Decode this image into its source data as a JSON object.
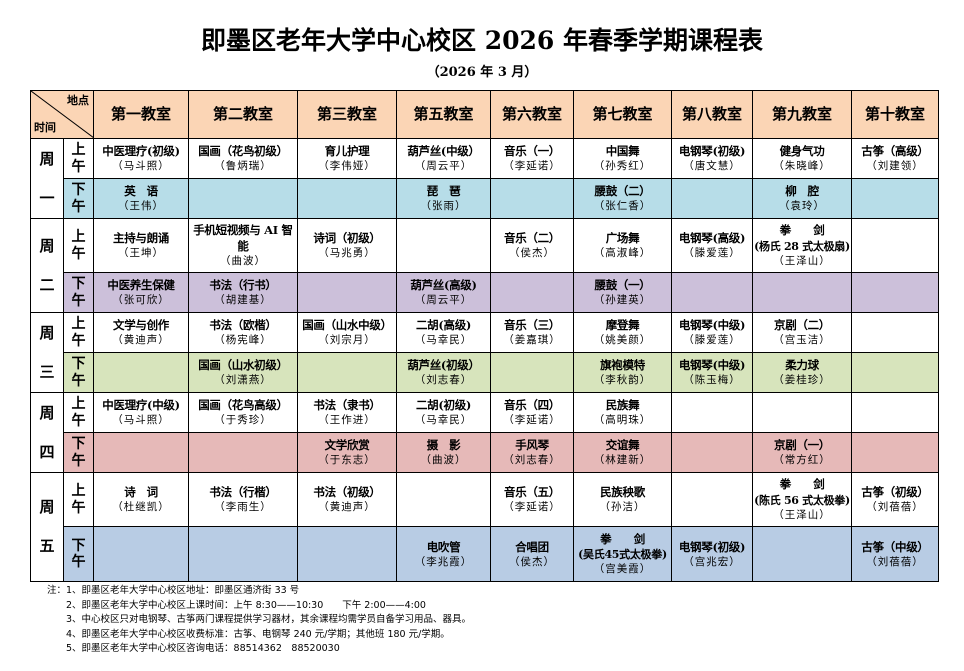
{
  "title": "即墨区老年大学中心校区 2026 年春季学期课程表",
  "subtitle": "（2026 年 3 月）",
  "corner": {
    "top": "地点",
    "bottom": "时间"
  },
  "columns": [
    "第一教室",
    "第二教室",
    "第三教室",
    "第五教室",
    "第六教室",
    "第七教室",
    "第八教室",
    "第九教室",
    "第十教室"
  ],
  "colors": {
    "header": "#fbd5b5",
    "mon_pm": "#b7dde8",
    "tue_pm": "#ccc0da",
    "wed_pm": "#d7e4bc",
    "thu_pm": "#e6b9b8",
    "fri_pm": "#b8cce4"
  },
  "days": [
    {
      "day": [
        "周",
        "一"
      ],
      "am_label": [
        "上",
        "午"
      ],
      "pm_label": [
        "下",
        "午"
      ],
      "pm_color": "#b7dde8",
      "am": [
        {
          "c": "中医理疗(初级)",
          "t": "（马斗照）"
        },
        {
          "c": "国画（花鸟初级）",
          "t": "（鲁炳瑞）"
        },
        {
          "c": "育儿护理",
          "t": "（李伟娅）"
        },
        {
          "c": "葫芦丝(中级）",
          "t": "（周云平）"
        },
        {
          "c": "音乐（一）",
          "t": "（李延诺）"
        },
        {
          "c": "中国舞",
          "t": "（孙秀红）"
        },
        {
          "c": "电钢琴(初级)",
          "t": "（唐文慧）"
        },
        {
          "c": "健身气功",
          "t": "（朱晓峰）"
        },
        {
          "c": "古筝（高级）",
          "t": "（刘建领）"
        }
      ],
      "pm": [
        {
          "c": "英　语",
          "t": "（王伟）"
        },
        null,
        null,
        {
          "c": "琵　琶",
          "t": "（张雨）"
        },
        null,
        {
          "c": "腰鼓（二）",
          "t": "（张仁香）"
        },
        null,
        {
          "c": "柳　腔",
          "t": "（袁玲）"
        },
        null
      ]
    },
    {
      "day": [
        "周",
        "二"
      ],
      "am_label": [
        "上",
        "午"
      ],
      "pm_label": [
        "下",
        "午"
      ],
      "pm_color": "#ccc0da",
      "am": [
        {
          "c": "主持与朗诵",
          "t": "（王坤）"
        },
        {
          "c": "手机短视频与 AI 智能",
          "t": "（曲波）"
        },
        {
          "c": "诗词（初级）",
          "t": "（马兆勇）"
        },
        null,
        {
          "c": "音乐（二）",
          "t": "（侯杰）"
        },
        {
          "c": "广场舞",
          "t": "（高淑峰）"
        },
        {
          "c": "电钢琴(高级)",
          "t": "（滕爱莲）"
        },
        {
          "c": "拳　　剑",
          "s": "(杨氏 28 式太极扇)",
          "t": "（王泽山）"
        },
        null
      ],
      "pm": [
        {
          "c": "中医养生保健",
          "t": "（张可欣）"
        },
        {
          "c": "书法（行书）",
          "t": "（胡建基）"
        },
        null,
        {
          "c": "葫芦丝(高级)",
          "t": "（周云平）"
        },
        null,
        {
          "c": "腰鼓（一）",
          "t": "（孙建英）"
        },
        null,
        null,
        null
      ]
    },
    {
      "day": [
        "周",
        "三"
      ],
      "am_label": [
        "上",
        "午"
      ],
      "pm_label": [
        "下",
        "午"
      ],
      "pm_color": "#d7e4bc",
      "am": [
        {
          "c": "文学与创作",
          "t": "（黄迪声）"
        },
        {
          "c": "书法（欧楷）",
          "t": "（杨宪峰）"
        },
        {
          "c": "国画（山水中级）",
          "t": "（刘宗月）"
        },
        {
          "c": "二胡(高级)",
          "t": "（马幸民）"
        },
        {
          "c": "音乐（三）",
          "t": "（姜嘉琪）"
        },
        {
          "c": "摩登舞",
          "t": "（姚美颜）"
        },
        {
          "c": "电钢琴(中级)",
          "t": "（滕爱莲）"
        },
        {
          "c": "京剧（二）",
          "t": "（宫玉洁）"
        },
        null
      ],
      "pm": [
        null,
        {
          "c": "国画（山水初级）",
          "t": "（刘潇燕）"
        },
        null,
        {
          "c": "葫芦丝(初级）",
          "t": "（刘志春）"
        },
        null,
        {
          "c": "旗袍模特",
          "t": "（李秋韵）"
        },
        {
          "c": "电钢琴(中级)",
          "t": "（陈玉梅）"
        },
        {
          "c": "柔力球",
          "t": "（姜桂珍）"
        },
        null
      ]
    },
    {
      "day": [
        "周",
        "四"
      ],
      "am_label": [
        "上",
        "午"
      ],
      "pm_label": [
        "下",
        "午"
      ],
      "pm_color": "#e6b9b8",
      "am": [
        {
          "c": "中医理疗(中级)",
          "t": "（马斗照）"
        },
        {
          "c": "国画（花鸟高级）",
          "t": "（于秀珍）"
        },
        {
          "c": "书法（隶书）",
          "t": "（王作进）"
        },
        {
          "c": "二胡(初级)",
          "t": "（马幸民）"
        },
        {
          "c": "音乐（四）",
          "t": "（李延诺）"
        },
        {
          "c": "民族舞",
          "t": "（高明珠）"
        },
        null,
        null,
        null
      ],
      "pm": [
        null,
        null,
        {
          "c": "文学欣赏",
          "t": "（于东志）"
        },
        {
          "c": "摄　影",
          "t": "（曲波）"
        },
        {
          "c": "手风琴",
          "t": "（刘志春）"
        },
        {
          "c": "交谊舞",
          "t": "（林建新）"
        },
        null,
        {
          "c": "京剧（一）",
          "t": "（常方红）"
        },
        null
      ]
    },
    {
      "day": [
        "周",
        "五"
      ],
      "am_label": [
        "上",
        "午"
      ],
      "pm_label": [
        "下",
        "午"
      ],
      "pm_color": "#b8cce4",
      "am": [
        {
          "c": "诗　词",
          "t": "（杜继凯）"
        },
        {
          "c": "书法（行楷）",
          "t": "（李雨生）"
        },
        {
          "c": "书法（初级）",
          "t": "（黄迪声）"
        },
        null,
        {
          "c": "音乐（五）",
          "t": "（李延诺）"
        },
        {
          "c": "民族秧歌",
          "t": "（孙洁）"
        },
        null,
        {
          "c": "拳　　剑",
          "s": "(陈氏 56 式太极拳)",
          "t": "（王泽山）"
        },
        {
          "c": "古筝（初级）",
          "t": "（刘蓓蓓）"
        }
      ],
      "pm": [
        null,
        null,
        null,
        {
          "c": "电吹管",
          "t": "（李兆霞）"
        },
        {
          "c": "合唱团",
          "t": "（侯杰）"
        },
        {
          "c": "拳　　剑",
          "s": "(吴氏45式太极拳)",
          "t": "（宫美霞）"
        },
        {
          "c": "电钢琴(初级)",
          "t": "（宫兆宏）"
        },
        null,
        {
          "c": "古筝（中级）",
          "t": "（刘蓓蓓）"
        }
      ]
    }
  ],
  "notes": [
    "注：1、即墨区老年大学中心校区地址：即墨区通济街 33 号",
    "2、即墨区老年大学中心校区上课时间：上午 8:30——10:30　　下午 2:00——4:00",
    "3、中心校区只对电钢琴、古筝两门课程提供学习器材，其余课程均需学员自备学习用品、器具。",
    "4、即墨区老年大学中心校区收费标准：古筝、电钢琴 240 元/学期；其他班 180 元/学期。",
    "5、即墨区老年大学中心校区咨询电话：88514362　88520030"
  ]
}
